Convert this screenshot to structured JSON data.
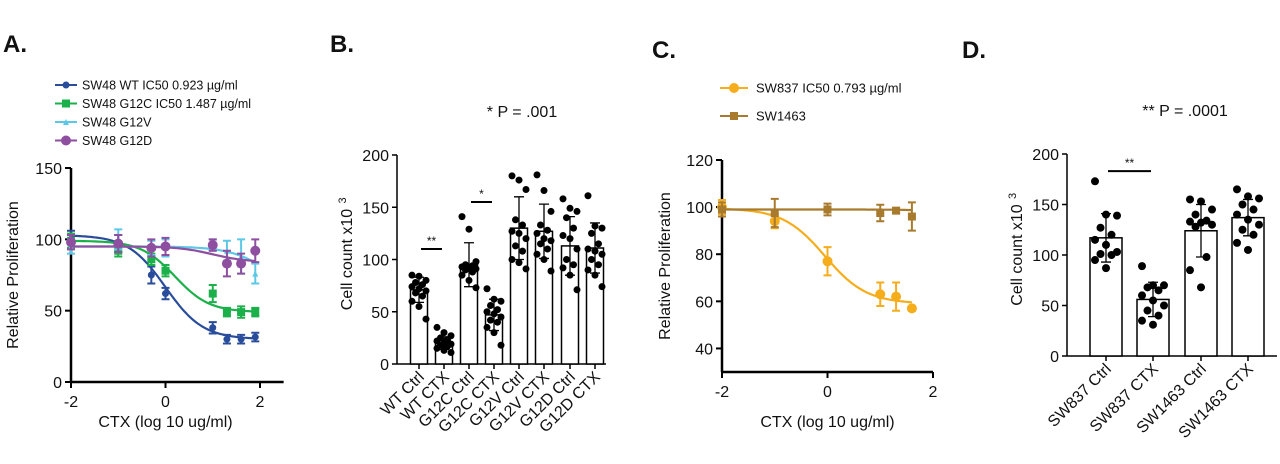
{
  "chart_data": [
    {
      "panel": "A.",
      "type": "line",
      "xlabel": "CTX (log 10 ug/ml)",
      "ylabel": "Relative Proliferation",
      "xlim": [
        -2,
        2.5
      ],
      "ylim": [
        0,
        150
      ],
      "xticks": [
        -2,
        0,
        2
      ],
      "yticks": [
        0,
        50,
        100,
        150
      ],
      "legend": "top-left",
      "x": [
        -2,
        -1,
        -0.3,
        0,
        1,
        1.3,
        1.6,
        1.9
      ],
      "series": [
        {
          "name": "SW48 WT  IC50 0.923 µg/ml",
          "color": "#2a4d9b",
          "marker": "circle-small",
          "values": [
            100,
            97,
            75,
            62,
            38,
            30,
            30,
            31.5
          ],
          "errors": [
            6,
            6,
            6,
            4,
            4,
            3,
            3,
            3
          ]
        },
        {
          "name": "SW48 G12C  IC50 1.487  µg/ml",
          "color": "#1bb04a",
          "marker": "square",
          "values": [
            99,
            92,
            86,
            78,
            62,
            49,
            49,
            49
          ],
          "errors": [
            5,
            4,
            4,
            4,
            6,
            3,
            4,
            3
          ]
        },
        {
          "name": "SW48 G12V",
          "color": "#5bc8e8",
          "marker": "triangle",
          "values": [
            95,
            100,
            94,
            94,
            96,
            92,
            88,
            76
          ],
          "errors": [
            5,
            7,
            5,
            6,
            4,
            7,
            12,
            7
          ]
        },
        {
          "name": "SW48 G12D",
          "color": "#8e4fa0",
          "marker": "circle",
          "values": [
            98,
            97,
            94,
            95,
            96,
            83,
            83,
            92
          ],
          "errors": [
            5,
            6,
            6,
            6,
            4,
            9,
            7,
            8
          ]
        }
      ]
    },
    {
      "panel": "B.",
      "type": "bar",
      "ylabel": "Cell count x10",
      "ylabel_sup": "3",
      "ylim": [
        0,
        200
      ],
      "yticks": [
        0,
        50,
        100,
        150,
        200
      ],
      "annotation": "*  P = .001",
      "categories": [
        "WT Ctrl",
        "WT CTX",
        "G12C Ctrl",
        "G12C CTX",
        "G12V Ctrl",
        "G12V CTX",
        "G12D Ctrl",
        "G12D CTX"
      ],
      "values": [
        71,
        20,
        95,
        47,
        130,
        127,
        113,
        111
      ],
      "errors": [
        12,
        6,
        21,
        15,
        30,
        26,
        28,
        24
      ],
      "points": [
        [
          85,
          84,
          80,
          78,
          76,
          74,
          72,
          70,
          68,
          65,
          60,
          55,
          43
        ],
        [
          35,
          30,
          27,
          25,
          23,
          22,
          20,
          19,
          18,
          17,
          15,
          13,
          11
        ],
        [
          141,
          129,
          98,
          95,
          94,
          93,
          92,
          91,
          90,
          88,
          85,
          80,
          73
        ],
        [
          72,
          62,
          60,
          56,
          52,
          50,
          48,
          45,
          42,
          40,
          35,
          30,
          18
        ],
        [
          180,
          176,
          167,
          138,
          133,
          127,
          125,
          120,
          113,
          108,
          100,
          97,
          91
        ],
        [
          181,
          166,
          146,
          133,
          128,
          125,
          120,
          118,
          115,
          110,
          105,
          100,
          89
        ],
        [
          158,
          149,
          146,
          140,
          130,
          123,
          120,
          110,
          100,
          95,
          92,
          85,
          71
        ],
        [
          161,
          132,
          130,
          125,
          115,
          110,
          108,
          105,
          100,
          95,
          90,
          85,
          74
        ]
      ],
      "significance": [
        {
          "pair": [
            0,
            1
          ],
          "label": "**",
          "y": 110
        },
        {
          "pair": [
            2,
            3
          ],
          "label": "*",
          "y": 155
        }
      ]
    },
    {
      "panel": "C.",
      "type": "line",
      "xlabel": "CTX (log 10 ug/ml)",
      "ylabel": "Relative Proliferation",
      "xlim": [
        -2,
        2
      ],
      "ylim": [
        30,
        120
      ],
      "xticks": [
        -2,
        0,
        2
      ],
      "yticks": [
        40,
        60,
        80,
        100,
        120
      ],
      "legend": "top-left",
      "x": [
        -2,
        -1,
        0,
        1,
        1.3,
        1.6
      ],
      "series": [
        {
          "name": "SW837  IC50 0.793 µg/ml",
          "color": "#f5ad1c",
          "marker": "circle",
          "values": [
            100,
            94,
            77,
            63,
            62,
            57
          ],
          "errors": [
            3,
            3,
            6,
            5,
            6,
            1
          ]
        },
        {
          "name": "SW1463",
          "color": "#a87a2e",
          "marker": "square",
          "values": [
            99,
            97.5,
            99,
            97.5,
            98.5,
            96
          ],
          "errors": [
            3,
            6,
            2.5,
            3.5,
            1,
            6
          ]
        }
      ]
    },
    {
      "panel": "D.",
      "type": "bar",
      "ylabel": "Cell count x10",
      "ylabel_sup": "3",
      "ylim": [
        0,
        200
      ],
      "yticks": [
        0,
        50,
        100,
        150,
        200
      ],
      "annotation": "** P = .0001",
      "categories": [
        "SW837  Ctrl",
        "SW837 CTX",
        "SW1463 Ctrl",
        "SW1463 CTX"
      ],
      "values": [
        117,
        56,
        124,
        137
      ],
      "errors": [
        24,
        17,
        26,
        18
      ],
      "points": [
        [
          173,
          140,
          139,
          127,
          120,
          115,
          110,
          103,
          101,
          100,
          95,
          87
        ],
        [
          89,
          70,
          70,
          68,
          65,
          60,
          55,
          50,
          45,
          40,
          35,
          31
        ],
        [
          155,
          153,
          145,
          140,
          134,
          133,
          132,
          130,
          128,
          98,
          85,
          68
        ],
        [
          165,
          158,
          156,
          150,
          145,
          140,
          135,
          130,
          125,
          120,
          112,
          105
        ]
      ],
      "significance": [
        {
          "pair": [
            0,
            1
          ],
          "label": "**",
          "y": 183
        }
      ]
    }
  ]
}
